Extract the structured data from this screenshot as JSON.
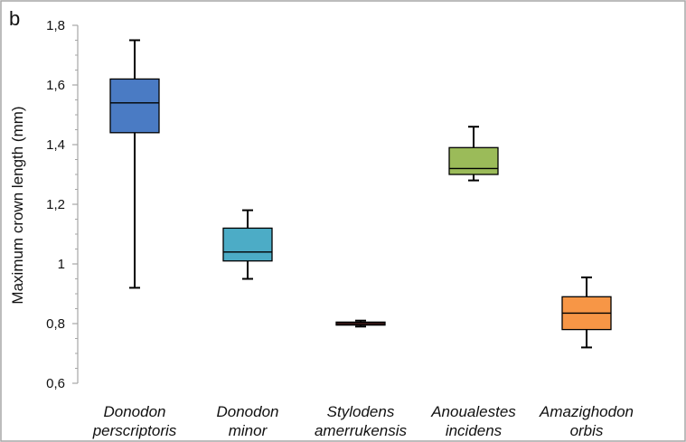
{
  "panel_label": "b",
  "chart_data": {
    "type": "box",
    "ylabel": "Maximum crown length (mm)",
    "ylim": [
      0.6,
      1.8
    ],
    "yticks": [
      "0,6",
      "0,8",
      "1",
      "1,2",
      "1,4",
      "1,6",
      "1,8"
    ],
    "grid": false,
    "legend": "none",
    "series": [
      {
        "category": [
          "Donodon",
          "perscriptoris"
        ],
        "color": "#4a7bc4",
        "min": 0.92,
        "q1": 1.44,
        "median": 1.54,
        "q3": 1.62,
        "max": 1.75
      },
      {
        "category": [
          "Donodon",
          "minor"
        ],
        "color": "#4cacc6",
        "min": 0.95,
        "q1": 1.01,
        "median": 1.04,
        "q3": 1.12,
        "max": 1.18
      },
      {
        "category": [
          "Stylodens",
          "amerrukensis"
        ],
        "color": "#c0504d",
        "min": 0.79,
        "q1": 0.795,
        "median": 0.8,
        "q3": 0.805,
        "max": 0.81
      },
      {
        "category": [
          "Anoualestes",
          "incidens"
        ],
        "color": "#9bbb59",
        "min": 1.28,
        "q1": 1.3,
        "median": 1.32,
        "q3": 1.39,
        "max": 1.46
      },
      {
        "category": [
          "Amazighodon",
          "orbis"
        ],
        "color": "#f79646",
        "min": 0.72,
        "q1": 0.78,
        "median": 0.835,
        "q3": 0.89,
        "max": 0.955
      }
    ]
  }
}
